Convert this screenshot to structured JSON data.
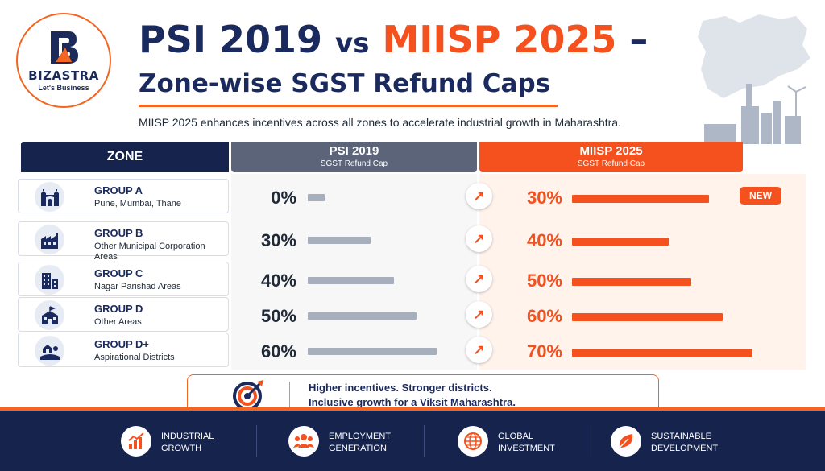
{
  "logo": {
    "name": "BIZASTRA",
    "tagline": "Let's Business",
    "icon": "bizastra-b-logo"
  },
  "title": {
    "part1": "PSI 2019",
    "vs": "vs",
    "part2": "MIISP 2025",
    "dash": "–",
    "line2": "Zone-wise SGST Refund Caps"
  },
  "subtitle": "MIISP 2025 enhances incentives across all zones to accelerate industrial growth in Maharashtra.",
  "illustration": "maharashtra-map-and-industry-skyline",
  "table": {
    "headers": {
      "zone": "ZONE",
      "psi": "PSI 2019",
      "psi_sub": "SGST Refund Cap",
      "miisp": "MIISP 2025",
      "miisp_sub": "SGST Refund Cap"
    },
    "rows": [
      {
        "group": "GROUP A",
        "areas": "Pune, Mumbai, Thane",
        "icon": "gateway-monument-icon",
        "psi": "0%",
        "miisp": "30%",
        "badge": "NEW"
      },
      {
        "group": "GROUP B",
        "areas": "Other Municipal Corporation Areas",
        "icon": "factory-icon",
        "psi": "30%",
        "miisp": "40%",
        "badge": ""
      },
      {
        "group": "GROUP C",
        "areas": "Nagar Parishad Areas",
        "icon": "buildings-icon",
        "psi": "40%",
        "miisp": "50%",
        "badge": ""
      },
      {
        "group": "GROUP D",
        "areas": "Other Areas",
        "icon": "school-building-icon",
        "psi": "50%",
        "miisp": "60%",
        "badge": ""
      },
      {
        "group": "GROUP D+",
        "areas": "Aspirational Districts",
        "icon": "village-house-icon",
        "psi": "60%",
        "miisp": "70%",
        "badge": ""
      }
    ]
  },
  "callout": {
    "line1": "Higher incentives. Stronger districts.",
    "line2": "Inclusive growth for a Viksit Maharashtra.",
    "icon": "target-arrow-icon"
  },
  "footer": [
    {
      "label": "INDUSTRIAL GROWTH",
      "icon": "growth-chart-icon"
    },
    {
      "label": "EMPLOYMENT GENERATION",
      "icon": "people-group-icon"
    },
    {
      "label": "GLOBAL INVESTMENT",
      "icon": "globe-icon"
    },
    {
      "label": "SUSTAINABLE DEVELOPMENT",
      "icon": "leaf-icon"
    }
  ],
  "colors": {
    "navy": "#15234d",
    "orange": "#f4511e",
    "grey_bar": "#a7afbd"
  }
}
